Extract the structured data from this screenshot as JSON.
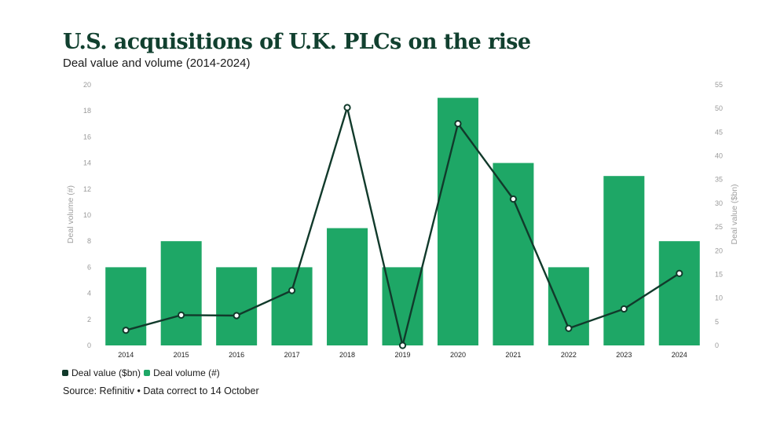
{
  "header": {
    "title": "U.S. acquisitions of U.K. PLCs on the rise",
    "subtitle": "Deal value and volume (2014-2024)"
  },
  "legend": {
    "value_label": "Deal value ($bn)",
    "volume_label": "Deal volume (#)"
  },
  "footer": {
    "source": "Source: Refinitiv • Data correct to 14 October"
  },
  "colors": {
    "bar": "#1ea766",
    "line": "#113a2b",
    "title": "#11402f"
  },
  "chart_data": {
    "type": "bar",
    "categories": [
      "2014",
      "2015",
      "2016",
      "2017",
      "2018",
      "2019",
      "2020",
      "2021",
      "2022",
      "2023",
      "2024"
    ],
    "series": [
      {
        "name": "Deal volume (#)",
        "type": "bar",
        "axis": "left",
        "values": [
          6,
          8,
          6,
          6,
          9,
          6,
          19,
          14,
          6,
          13,
          8
        ]
      },
      {
        "name": "Deal value ($bn)",
        "type": "line",
        "axis": "right",
        "values": [
          3.2,
          6.4,
          6.3,
          11.6,
          50.2,
          0,
          46.8,
          30.9,
          3.6,
          7.7,
          15.2
        ]
      }
    ],
    "ylabel": "Deal volume (#)",
    "ylabel_right": "Deal value ($bn)",
    "ylim": [
      0,
      20
    ],
    "ylim_right": [
      0,
      55
    ],
    "yticks": [
      "0",
      "2",
      "4",
      "6",
      "8",
      "10",
      "12",
      "14",
      "16",
      "18",
      "20"
    ],
    "yticks_right": [
      "0",
      "5",
      "10",
      "15",
      "20",
      "25",
      "30",
      "35",
      "40",
      "45",
      "50",
      "55"
    ],
    "grid": false,
    "legend_position": "bottom-left"
  }
}
